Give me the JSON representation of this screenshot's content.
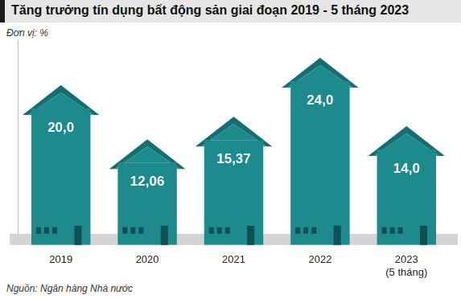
{
  "chart_data": {
    "type": "bar",
    "title": "Tăng trưởng tín dụng bất động sản giai đoạn 2019 - 5 tháng 2023",
    "subtitle": "Đơn vị: %",
    "source": "Nguồn: Ngân hàng Nhà nước",
    "categories": [
      "2019",
      "2020",
      "2021",
      "2022",
      [
        "2023",
        "(5 tháng)"
      ]
    ],
    "values": [
      20.0,
      12.06,
      15.37,
      24.0,
      14.0
    ],
    "value_labels": [
      "20,0",
      "12,06",
      "15,37",
      "24,0",
      "14,0"
    ],
    "color": "#1d8a8e",
    "ylim": [
      0,
      30
    ],
    "grid": false,
    "data_labels": true,
    "tick_labels": "x"
  }
}
